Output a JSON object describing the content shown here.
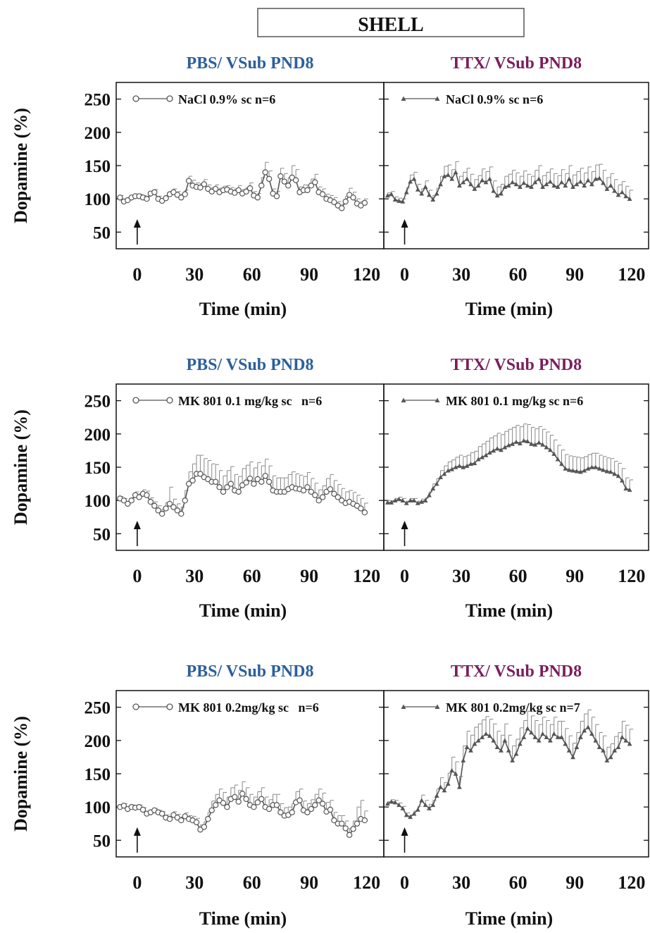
{
  "header": {
    "title": "SHELL"
  },
  "colors": {
    "pbs": "#2d5f9a",
    "ttx": "#7a1f5c",
    "ink": "#111111",
    "marker": "#555555",
    "errbar": "#888888"
  },
  "axis": {
    "ylabel": "Dopamine (%)",
    "xlabel": "Time (min)",
    "yticks": [
      50,
      100,
      150,
      200,
      250
    ],
    "xticks": [
      0,
      30,
      60,
      90,
      120
    ],
    "ylim": [
      25,
      275
    ],
    "xlim": [
      -11,
      129
    ],
    "injection_time": 0
  },
  "chart_data": [
    {
      "type": "line",
      "title": "PBS/ VSub PND8",
      "legend": "NaCl 0.9% sc n=6",
      "marker": "circle",
      "x": [
        -9,
        -7,
        -5,
        -3,
        -1,
        1,
        3,
        5,
        7,
        9,
        11,
        13,
        15,
        17,
        19,
        21,
        23,
        25,
        27,
        29,
        31,
        33,
        35,
        37,
        39,
        41,
        43,
        45,
        47,
        49,
        51,
        53,
        55,
        57,
        59,
        61,
        63,
        65,
        67,
        69,
        71,
        73,
        75,
        77,
        79,
        81,
        83,
        85,
        87,
        89,
        91,
        93,
        95,
        97,
        99,
        101,
        103,
        105,
        107,
        109,
        111,
        113,
        115,
        117,
        119
      ],
      "y": [
        102,
        96,
        98,
        102,
        104,
        104,
        102,
        100,
        108,
        110,
        100,
        97,
        101,
        107,
        110,
        106,
        102,
        107,
        127,
        120,
        118,
        117,
        122,
        115,
        111,
        115,
        110,
        113,
        114,
        111,
        109,
        113,
        108,
        111,
        116,
        105,
        102,
        120,
        140,
        130,
        108,
        104,
        134,
        126,
        120,
        132,
        128,
        110,
        113,
        113,
        120,
        125,
        110,
        107,
        100,
        98,
        95,
        90,
        86,
        96,
        106,
        102,
        93,
        90,
        94
      ],
      "err": [
        3,
        3,
        3,
        3,
        3,
        3,
        3,
        3,
        3,
        4,
        4,
        4,
        4,
        4,
        5,
        5,
        5,
        6,
        7,
        8,
        6,
        6,
        7,
        6,
        6,
        6,
        6,
        6,
        6,
        6,
        6,
        7,
        6,
        6,
        8,
        6,
        6,
        12,
        15,
        12,
        7,
        7,
        12,
        12,
        12,
        18,
        16,
        8,
        8,
        8,
        10,
        12,
        8,
        8,
        7,
        7,
        7,
        6,
        6,
        8,
        10,
        8,
        7,
        6,
        6
      ],
      "ylim": [
        25,
        275
      ],
      "xlim": [
        -11,
        129
      ]
    },
    {
      "type": "line",
      "title": "TTX/ VSub PND8",
      "legend": "NaCl 0.9% sc n=6",
      "marker": "triangle",
      "x": [
        -9,
        -7,
        -5,
        -3,
        -1,
        1,
        3,
        5,
        7,
        9,
        11,
        13,
        15,
        17,
        19,
        21,
        23,
        25,
        27,
        29,
        31,
        33,
        35,
        37,
        39,
        41,
        43,
        45,
        47,
        49,
        51,
        53,
        55,
        57,
        59,
        61,
        63,
        65,
        67,
        69,
        71,
        73,
        75,
        77,
        79,
        81,
        83,
        85,
        87,
        89,
        91,
        93,
        95,
        97,
        99,
        101,
        103,
        105,
        107,
        109,
        111,
        113,
        115,
        117,
        119
      ],
      "y": [
        105,
        107,
        99,
        97,
        96,
        110,
        126,
        130,
        114,
        108,
        118,
        106,
        99,
        108,
        122,
        134,
        136,
        130,
        140,
        120,
        125,
        130,
        122,
        115,
        120,
        128,
        125,
        130,
        112,
        105,
        108,
        118,
        120,
        125,
        122,
        118,
        124,
        120,
        118,
        125,
        130,
        118,
        122,
        126,
        120,
        118,
        125,
        120,
        130,
        118,
        122,
        126,
        120,
        128,
        122,
        130,
        131,
        124,
        115,
        120,
        112,
        106,
        110,
        104,
        100
      ],
      "err": [
        4,
        4,
        4,
        4,
        4,
        7,
        10,
        10,
        8,
        7,
        9,
        7,
        6,
        8,
        12,
        15,
        15,
        14,
        16,
        14,
        15,
        16,
        15,
        14,
        15,
        17,
        16,
        18,
        15,
        13,
        14,
        16,
        17,
        18,
        17,
        16,
        18,
        17,
        16,
        18,
        20,
        17,
        18,
        19,
        18,
        17,
        19,
        18,
        20,
        18,
        19,
        20,
        19,
        20,
        19,
        21,
        21,
        19,
        17,
        18,
        17,
        15,
        16,
        15,
        13
      ],
      "ylim": [
        25,
        275
      ],
      "xlim": [
        -11,
        129
      ]
    },
    {
      "type": "line",
      "title": "PBS/ VSub PND8",
      "legend": "MK 801 0.1 mg/kg sc   n=6",
      "marker": "circle",
      "x": [
        -9,
        -7,
        -5,
        -3,
        -1,
        1,
        3,
        5,
        7,
        9,
        11,
        13,
        15,
        17,
        19,
        21,
        23,
        25,
        27,
        29,
        31,
        33,
        35,
        37,
        39,
        41,
        43,
        45,
        47,
        49,
        51,
        53,
        55,
        57,
        59,
        61,
        63,
        65,
        67,
        69,
        71,
        73,
        75,
        77,
        79,
        81,
        83,
        85,
        87,
        89,
        91,
        93,
        95,
        97,
        99,
        101,
        103,
        105,
        107,
        109,
        111,
        113,
        115,
        117,
        119
      ],
      "y": [
        103,
        100,
        95,
        100,
        108,
        105,
        110,
        108,
        98,
        92,
        85,
        80,
        88,
        95,
        90,
        85,
        80,
        100,
        125,
        130,
        140,
        140,
        135,
        132,
        128,
        128,
        120,
        113,
        120,
        125,
        115,
        113,
        123,
        127,
        133,
        125,
        132,
        128,
        137,
        128,
        115,
        113,
        113,
        113,
        117,
        120,
        118,
        117,
        115,
        120,
        113,
        108,
        100,
        105,
        113,
        117,
        110,
        105,
        100,
        96,
        98,
        95,
        92,
        88,
        82
      ],
      "err": [
        3,
        3,
        3,
        4,
        5,
        5,
        6,
        6,
        6,
        6,
        7,
        7,
        9,
        25,
        12,
        10,
        10,
        15,
        18,
        25,
        28,
        28,
        28,
        28,
        27,
        26,
        25,
        24,
        25,
        26,
        24,
        23,
        25,
        26,
        25,
        24,
        25,
        24,
        25,
        24,
        22,
        21,
        21,
        21,
        22,
        23,
        22,
        21,
        21,
        22,
        20,
        18,
        16,
        17,
        20,
        22,
        20,
        19,
        18,
        17,
        17,
        17,
        16,
        15,
        14
      ],
      "ylim": [
        25,
        275
      ],
      "xlim": [
        -11,
        129
      ]
    },
    {
      "type": "line",
      "title": "TTX/ VSub PND8",
      "legend": "MK 801 0.1 mg/kg sc n=6",
      "marker": "triangle",
      "x": [
        -9,
        -7,
        -5,
        -3,
        -1,
        1,
        3,
        5,
        7,
        9,
        11,
        13,
        15,
        17,
        19,
        21,
        23,
        25,
        27,
        29,
        31,
        33,
        35,
        37,
        39,
        41,
        43,
        45,
        47,
        49,
        51,
        53,
        55,
        57,
        59,
        61,
        63,
        65,
        67,
        69,
        71,
        73,
        75,
        77,
        79,
        81,
        83,
        85,
        87,
        89,
        91,
        93,
        95,
        97,
        99,
        101,
        103,
        105,
        107,
        109,
        111,
        113,
        115,
        117,
        119
      ],
      "y": [
        97,
        97,
        100,
        102,
        100,
        96,
        100,
        100,
        96,
        98,
        100,
        108,
        118,
        125,
        135,
        140,
        145,
        147,
        150,
        152,
        150,
        152,
        155,
        156,
        162,
        165,
        168,
        172,
        175,
        178,
        176,
        180,
        183,
        185,
        188,
        186,
        190,
        189,
        185,
        184,
        187,
        184,
        180,
        176,
        170,
        162,
        155,
        148,
        146,
        145,
        144,
        143,
        145,
        148,
        150,
        150,
        148,
        146,
        144,
        143,
        140,
        137,
        130,
        118,
        116
      ],
      "err": [
        3,
        3,
        3,
        3,
        3,
        3,
        3,
        3,
        3,
        4,
        4,
        5,
        7,
        8,
        10,
        12,
        13,
        14,
        15,
        16,
        16,
        16,
        17,
        18,
        19,
        20,
        21,
        22,
        22,
        23,
        23,
        24,
        24,
        25,
        25,
        25,
        25,
        25,
        25,
        24,
        24,
        23,
        23,
        22,
        21,
        21,
        21,
        21,
        21,
        21,
        21,
        21,
        21,
        21,
        21,
        21,
        20,
        20,
        20,
        20,
        19,
        19,
        18,
        16,
        15
      ],
      "ylim": [
        25,
        275
      ],
      "xlim": [
        -11,
        129
      ]
    },
    {
      "type": "line",
      "title": "PBS/ VSub PND8",
      "legend": "MK 801 0.2mg/kg sc   n=6",
      "marker": "circle",
      "x": [
        -9,
        -7,
        -5,
        -3,
        -1,
        1,
        3,
        5,
        7,
        9,
        11,
        13,
        15,
        17,
        19,
        21,
        23,
        25,
        27,
        29,
        31,
        33,
        35,
        37,
        39,
        41,
        43,
        45,
        47,
        49,
        51,
        53,
        55,
        57,
        59,
        61,
        63,
        65,
        67,
        69,
        71,
        73,
        75,
        77,
        79,
        81,
        83,
        85,
        87,
        89,
        91,
        93,
        95,
        97,
        99,
        101,
        103,
        105,
        107,
        109,
        111,
        113,
        115,
        117,
        119
      ],
      "y": [
        100,
        102,
        97,
        100,
        99,
        100,
        96,
        90,
        92,
        95,
        92,
        90,
        84,
        82,
        88,
        84,
        80,
        86,
        82,
        80,
        77,
        66,
        70,
        82,
        95,
        103,
        110,
        106,
        100,
        112,
        115,
        108,
        120,
        112,
        103,
        100,
        107,
        112,
        100,
        97,
        103,
        103,
        92,
        87,
        88,
        92,
        107,
        110,
        95,
        92,
        97,
        103,
        110,
        105,
        93,
        96,
        80,
        75,
        75,
        68,
        58,
        67,
        75,
        82,
        80
      ],
      "err": [
        3,
        3,
        3,
        3,
        3,
        3,
        3,
        3,
        3,
        3,
        3,
        3,
        4,
        4,
        5,
        5,
        5,
        5,
        5,
        6,
        6,
        7,
        8,
        10,
        14,
        16,
        17,
        16,
        15,
        17,
        18,
        17,
        18,
        17,
        16,
        15,
        16,
        17,
        15,
        14,
        16,
        16,
        13,
        12,
        12,
        13,
        16,
        17,
        14,
        13,
        14,
        16,
        17,
        16,
        14,
        14,
        12,
        12,
        12,
        11,
        10,
        12,
        25,
        28,
        14
      ],
      "ylim": [
        25,
        275
      ],
      "xlim": [
        -11,
        129
      ]
    },
    {
      "type": "line",
      "title": "TTX/ VSub PND8",
      "legend": "MK 801 0.2mg/kg sc n=7",
      "marker": "triangle",
      "x": [
        -9,
        -7,
        -5,
        -3,
        -1,
        1,
        3,
        5,
        7,
        9,
        11,
        13,
        15,
        17,
        19,
        21,
        23,
        25,
        27,
        29,
        31,
        33,
        35,
        37,
        39,
        41,
        43,
        45,
        47,
        49,
        51,
        53,
        55,
        57,
        59,
        61,
        63,
        65,
        67,
        69,
        71,
        73,
        75,
        77,
        79,
        81,
        83,
        85,
        87,
        89,
        91,
        93,
        95,
        97,
        99,
        101,
        103,
        105,
        107,
        109,
        111,
        113,
        115,
        117,
        119
      ],
      "y": [
        105,
        108,
        107,
        103,
        98,
        88,
        85,
        90,
        96,
        110,
        103,
        98,
        103,
        117,
        130,
        125,
        135,
        155,
        150,
        130,
        170,
        190,
        185,
        195,
        200,
        205,
        210,
        207,
        200,
        190,
        185,
        200,
        185,
        170,
        180,
        195,
        205,
        218,
        212,
        205,
        200,
        210,
        205,
        200,
        210,
        205,
        205,
        195,
        185,
        175,
        190,
        205,
        215,
        220,
        210,
        200,
        190,
        185,
        170,
        175,
        185,
        190,
        205,
        200,
        195
      ],
      "err": [
        3,
        3,
        3,
        3,
        3,
        3,
        3,
        4,
        5,
        8,
        7,
        6,
        7,
        10,
        14,
        12,
        16,
        20,
        18,
        16,
        22,
        24,
        23,
        25,
        25,
        26,
        26,
        25,
        25,
        24,
        23,
        25,
        23,
        22,
        22,
        24,
        25,
        26,
        25,
        25,
        24,
        25,
        25,
        24,
        25,
        24,
        24,
        23,
        22,
        21,
        22,
        24,
        25,
        26,
        25,
        24,
        22,
        22,
        20,
        20,
        21,
        22,
        24,
        23,
        22
      ],
      "ylim": [
        25,
        275
      ],
      "xlim": [
        -11,
        129
      ]
    }
  ]
}
